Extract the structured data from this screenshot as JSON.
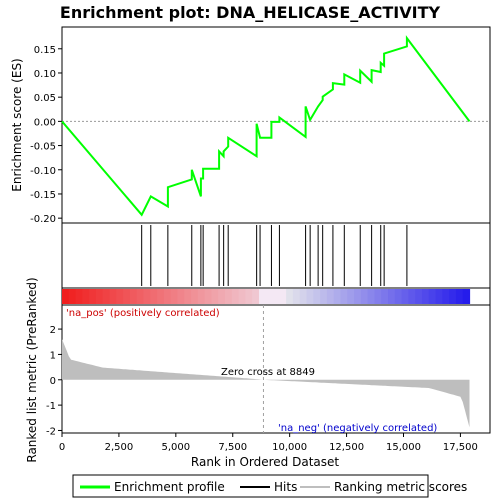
{
  "chart_data": {
    "type": "line",
    "title": "Enrichment plot: DNA_HELICASE_ACTIVITY",
    "ylabel_top": "Enrichment score (ES)",
    "ylabel_bottom": "Ranked list metric (PreRanked)",
    "xlabel": "Rank in Ordered Dataset",
    "top_ylim": [
      -0.21,
      0.195
    ],
    "top_yticks": [
      -0.2,
      -0.15,
      -0.1,
      -0.05,
      0.0,
      0.05,
      0.1,
      0.15
    ],
    "top_ytick_labels": [
      "-0.20",
      "-0.15",
      "-0.10",
      "-0.05",
      "0.00",
      "0.05",
      "0.10",
      "0.15"
    ],
    "bottom_ylim": [
      -2.1,
      2.95
    ],
    "bottom_yticks": [
      -2,
      -1,
      0,
      1,
      2
    ],
    "bottom_ytick_labels": [
      "-2",
      "-1",
      "0",
      "1",
      "2"
    ],
    "xlim": [
      0,
      18800
    ],
    "xticks": [
      0,
      2500,
      5000,
      7500,
      10000,
      12500,
      15000,
      17500
    ],
    "xtick_labels": [
      "0",
      "2,500",
      "5,000",
      "7,500",
      "10,000",
      "12,500",
      "15,000",
      "17,500"
    ],
    "n_genes": 17900,
    "hits": [
      3500,
      3900,
      4650,
      5700,
      6100,
      6200,
      6900,
      7100,
      7300,
      8550,
      8700,
      9200,
      9550,
      10700,
      10900,
      11250,
      11450,
      11900,
      12400,
      13100,
      13600,
      14000,
      14150,
      15150
    ],
    "es_peaks": [
      -0.193,
      -0.155,
      -0.136,
      -0.1,
      -0.118,
      -0.098,
      -0.062,
      -0.062,
      -0.034,
      -0.005,
      -0.034,
      -0.001,
      0.008,
      0.031,
      0.003,
      0.031,
      0.051,
      0.079,
      0.097,
      0.105,
      0.106,
      0.121,
      0.14,
      0.172,
      0.155
    ],
    "es_troughs": [
      -0.155,
      -0.176,
      -0.12,
      -0.155,
      -0.118,
      -0.098,
      -0.072,
      -0.052,
      -0.072,
      -0.034,
      -0.034,
      -0.001,
      -0.032,
      0.003,
      0.031,
      0.044,
      0.066,
      0.076,
      0.08,
      0.082,
      0.102,
      0.115,
      0.155,
      0.0
    ],
    "zero_cross_rank": 8849,
    "annotation_zero_cross": "Zero cross at 8849",
    "label_pos": "'na_pos' (positively correlated)",
    "label_neg": "'na_neg' (negatively correlated)",
    "legend": [
      "Enrichment profile",
      "Hits",
      "Ranking metric scores"
    ],
    "colors": {
      "es_line": "#00ff00",
      "hits": "#000000",
      "metric_fill": "#bebebe",
      "zero_cross_line": "#a0a0a0",
      "label_pos": "#cc0000",
      "label_neg": "#0000cc"
    }
  }
}
